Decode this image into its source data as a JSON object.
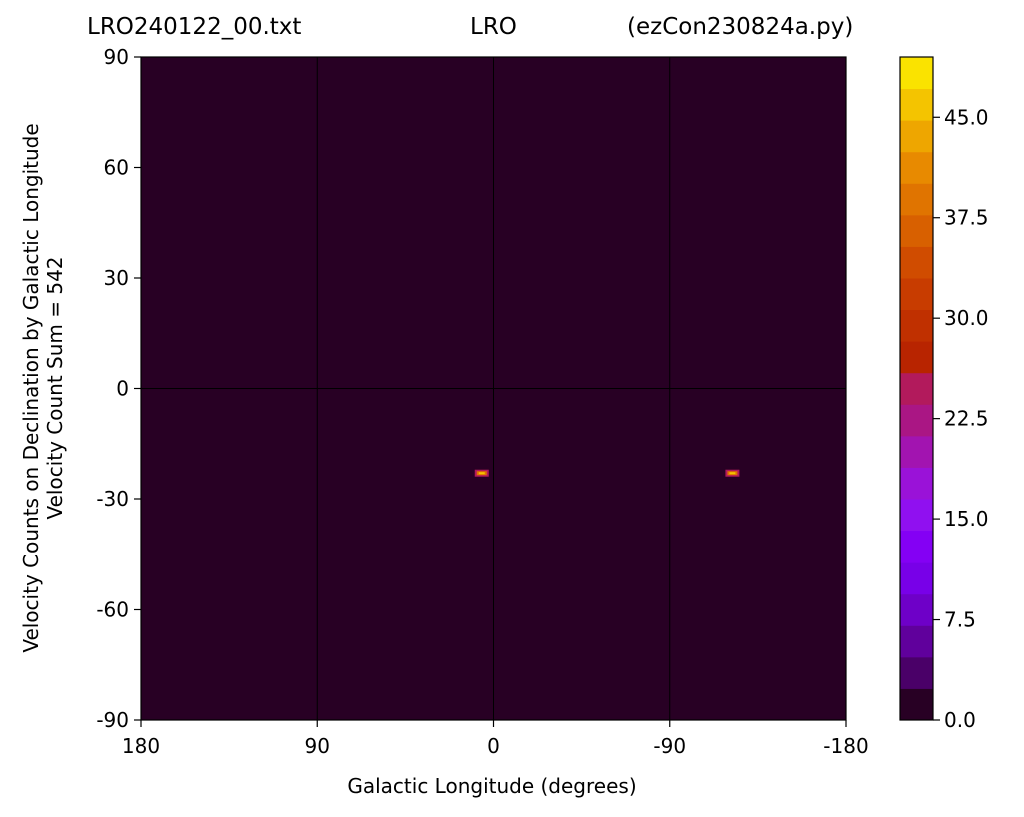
{
  "titles": {
    "left": "LRO240122_00.txt",
    "center": "LRO",
    "right": "(ezCon230824a.py)"
  },
  "chart_data": {
    "type": "heatmap",
    "xlabel": "Galactic Longitude (degrees)",
    "ylabel_lines": [
      "Velocity Counts on Declination by Galactic Longitude",
      "Velocity Count Sum = 542"
    ],
    "xlim": [
      180,
      -180
    ],
    "ylim": [
      -90,
      90
    ],
    "x_ticks": [
      180,
      90,
      0,
      -90,
      -180
    ],
    "x_tick_labels": [
      "180",
      "90",
      "0",
      "-90",
      "-180"
    ],
    "y_ticks": [
      90,
      60,
      30,
      0,
      -30,
      -60,
      -90
    ],
    "y_tick_labels": [
      "90",
      "60",
      "30",
      "0",
      "-30",
      "-60",
      "-90"
    ],
    "background_value": 0,
    "hotspots": [
      {
        "x": 6,
        "y": -23
      },
      {
        "x": -122,
        "y": -23
      }
    ],
    "grid": true,
    "colorbar": {
      "min": 0,
      "max": 49.5,
      "levels": 20,
      "ticks": [
        0.0,
        7.5,
        15.0,
        22.5,
        30.0,
        37.5,
        45.0
      ],
      "tick_labels": [
        "0.0",
        "7.5",
        "15.0",
        "22.5",
        "30.0",
        "37.5",
        "45.0"
      ],
      "colors": [
        "#280024",
        "#4a0068",
        "#60009c",
        "#6e00c8",
        "#7800e8",
        "#8400f4",
        "#9010f0",
        "#9a12d8",
        "#a214b0",
        "#aa1684",
        "#b21a5c",
        "#b82400",
        "#c03000",
        "#c83c00",
        "#d04c00",
        "#d86000",
        "#e07400",
        "#e88a00",
        "#eea600",
        "#f4c400",
        "#fae300"
      ]
    }
  }
}
